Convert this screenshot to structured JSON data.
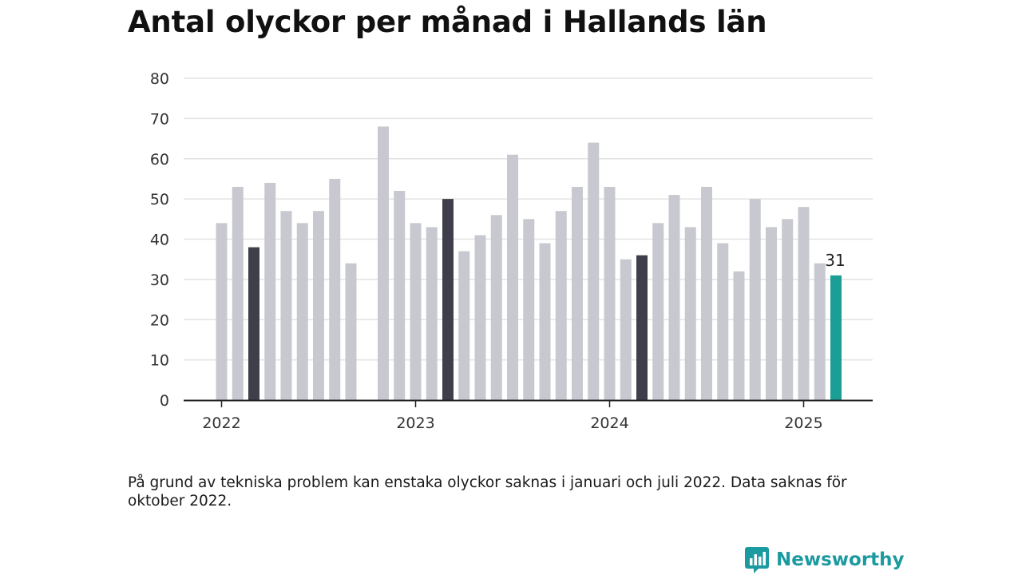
{
  "title": "Antal olyckor per månad i Hallands län",
  "footnote": "På grund av tekniska problem kan enstaka olyckor saknas i januari och juli 2022. Data saknas för oktober 2022.",
  "brand": {
    "name": "Newsworthy",
    "icon": "newsworthy-logo-icon"
  },
  "colors": {
    "regular": "#c8c8d0",
    "highlight": "#3f3f4c",
    "latest": "#1a9e96",
    "axis": "#222222",
    "grid": "#e2e2e2"
  },
  "chart_data": {
    "type": "bar",
    "title": "Antal olyckor per månad i Hallands län",
    "xlabel": "",
    "ylabel": "",
    "ylim": [
      0,
      80
    ],
    "yticks": [
      "0",
      "10",
      "20",
      "30",
      "40",
      "50",
      "60",
      "70",
      "80"
    ],
    "xticks": [
      "2022",
      "2023",
      "2024",
      "2025"
    ],
    "grid": true,
    "categories": [
      "2022-01",
      "2022-02",
      "2022-03",
      "2022-04",
      "2022-05",
      "2022-06",
      "2022-07",
      "2022-08",
      "2022-09",
      "2022-10",
      "2022-11",
      "2022-12",
      "2023-01",
      "2023-02",
      "2023-03",
      "2023-04",
      "2023-05",
      "2023-06",
      "2023-07",
      "2023-08",
      "2023-09",
      "2023-10",
      "2023-11",
      "2023-12",
      "2024-01",
      "2024-02",
      "2024-03",
      "2024-04",
      "2024-05",
      "2024-06",
      "2024-07",
      "2024-08",
      "2024-09",
      "2024-10",
      "2024-11",
      "2024-12",
      "2025-01",
      "2025-02",
      "2025-03"
    ],
    "values": [
      44,
      53,
      38,
      54,
      47,
      44,
      47,
      55,
      34,
      null,
      68,
      52,
      44,
      43,
      50,
      37,
      41,
      46,
      61,
      45,
      39,
      47,
      53,
      64,
      53,
      35,
      36,
      44,
      51,
      43,
      53,
      39,
      32,
      50,
      43,
      45,
      48,
      34,
      31
    ],
    "highlighted": [
      "2022-03",
      "2023-03",
      "2024-03"
    ],
    "latest": "2025-03",
    "data_labels": [
      {
        "category": "2025-03",
        "text": "31"
      }
    ]
  }
}
